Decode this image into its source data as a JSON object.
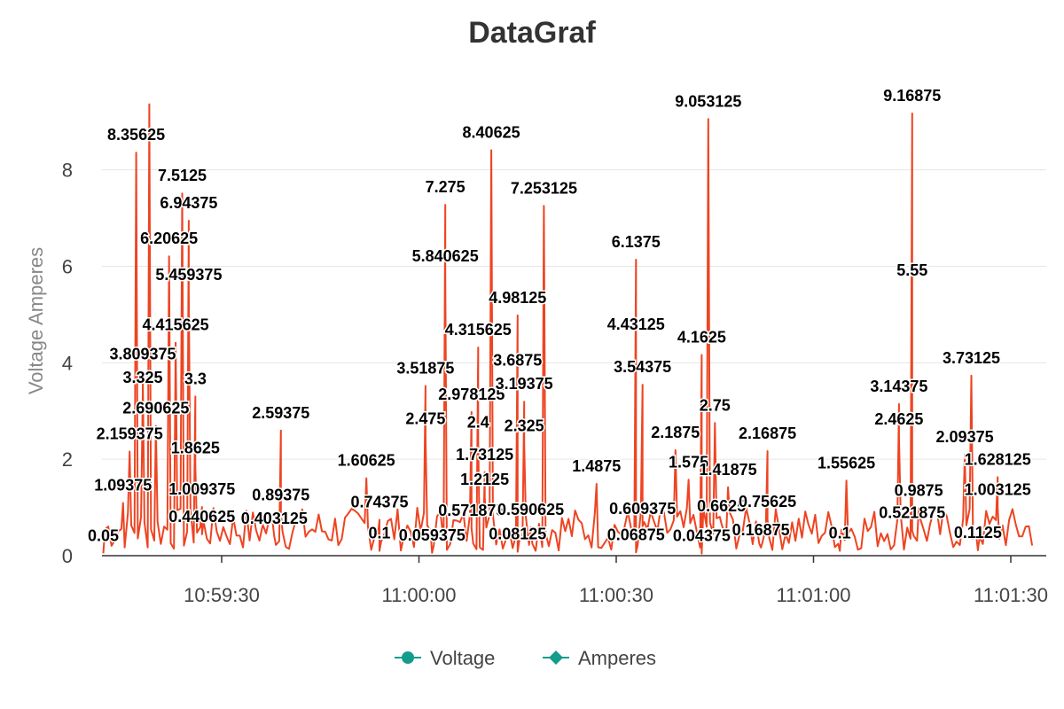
{
  "chart_data": {
    "type": "line",
    "title": "DataGraf",
    "ylabel": "Voltage Amperes",
    "xlabel": "",
    "ylim": [
      0,
      9.5
    ],
    "yticks": [
      0,
      2,
      4,
      6,
      8
    ],
    "xticks": [
      "10:59:30",
      "11:00:00",
      "11:00:30",
      "11:01:00",
      "11:01:30"
    ],
    "x_start": "10:59:12",
    "x_end": "11:01:33",
    "grid": true,
    "legend_position": "bottom",
    "legend": [
      {
        "name": "Voltage",
        "color": "#139c8c",
        "marker": "circle"
      },
      {
        "name": "Amperes",
        "color": "#139c8c",
        "marker": "diamond"
      }
    ],
    "line_color": "#ee4422",
    "labeled_points": [
      {
        "x": "10:59:12",
        "y": 0.05,
        "label": "0.05"
      },
      {
        "x": "10:59:15",
        "y": 1.09375,
        "label": "1.09375"
      },
      {
        "x": "10:59:16",
        "y": 2.159375,
        "label": "2.159375"
      },
      {
        "x": "10:59:17",
        "y": 8.35625,
        "label": "8.35625"
      },
      {
        "x": "10:59:18",
        "y": 3.325,
        "label": "3.325"
      },
      {
        "x": "10:59:18",
        "y": 3.809375,
        "label": "3.809375"
      },
      {
        "x": "10:59:19",
        "y": 9.36,
        "label": ""
      },
      {
        "x": "10:59:20",
        "y": 2.690625,
        "label": "2.690625"
      },
      {
        "x": "10:59:22",
        "y": 6.20625,
        "label": "6.20625"
      },
      {
        "x": "10:59:23",
        "y": 4.415625,
        "label": "4.415625"
      },
      {
        "x": "10:59:24",
        "y": 7.5125,
        "label": "7.5125"
      },
      {
        "x": "10:59:25",
        "y": 6.94375,
        "label": "6.94375"
      },
      {
        "x": "10:59:25",
        "y": 5.459375,
        "label": "5.459375"
      },
      {
        "x": "10:59:26",
        "y": 3.3,
        "label": "3.3"
      },
      {
        "x": "10:59:26",
        "y": 1.8625,
        "label": "1.8625"
      },
      {
        "x": "10:59:27",
        "y": 1.009375,
        "label": "1.009375"
      },
      {
        "x": "10:59:27",
        "y": 0.440625,
        "label": "0.440625"
      },
      {
        "x": "10:59:39",
        "y": 2.59375,
        "label": "2.59375"
      },
      {
        "x": "10:59:39",
        "y": 0.89375,
        "label": "0.89375"
      },
      {
        "x": "10:59:38",
        "y": 0.403125,
        "label": "0.403125"
      },
      {
        "x": "10:59:52",
        "y": 1.60625,
        "label": "1.60625"
      },
      {
        "x": "10:59:54",
        "y": 0.74375,
        "label": "0.74375"
      },
      {
        "x": "10:59:54",
        "y": 0.1,
        "label": "0.1"
      },
      {
        "x": "11:00:01",
        "y": 3.51875,
        "label": "3.51875"
      },
      {
        "x": "11:00:01",
        "y": 2.475,
        "label": "2.475"
      },
      {
        "x": "11:00:04",
        "y": 7.275,
        "label": "7.275"
      },
      {
        "x": "11:00:04",
        "y": 5.840625,
        "label": "5.840625"
      },
      {
        "x": "11:00:02",
        "y": 0.059375,
        "label": "0.059375"
      },
      {
        "x": "11:00:08",
        "y": 2.978125,
        "label": "2.978125"
      },
      {
        "x": "11:00:08",
        "y": 0.571875,
        "label": "0.571875"
      },
      {
        "x": "11:00:09",
        "y": 4.315625,
        "label": "4.315625"
      },
      {
        "x": "11:00:09",
        "y": 2.4,
        "label": "2.4"
      },
      {
        "x": "11:00:10",
        "y": 1.73125,
        "label": "1.73125"
      },
      {
        "x": "11:00:10",
        "y": 1.2125,
        "label": "1.2125"
      },
      {
        "x": "11:00:11",
        "y": 8.40625,
        "label": "8.40625"
      },
      {
        "x": "11:00:15",
        "y": 4.98125,
        "label": "4.98125"
      },
      {
        "x": "11:00:15",
        "y": 3.6875,
        "label": "3.6875"
      },
      {
        "x": "11:00:16",
        "y": 3.19375,
        "label": "3.19375"
      },
      {
        "x": "11:00:16",
        "y": 2.325,
        "label": "2.325"
      },
      {
        "x": "11:00:15",
        "y": 0.08125,
        "label": "0.08125"
      },
      {
        "x": "11:00:17",
        "y": 0.590625,
        "label": "0.590625"
      },
      {
        "x": "11:00:19",
        "y": 7.253125,
        "label": "7.253125"
      },
      {
        "x": "11:00:27",
        "y": 1.4875,
        "label": "1.4875"
      },
      {
        "x": "11:00:33",
        "y": 6.1375,
        "label": "6.1375"
      },
      {
        "x": "11:00:33",
        "y": 4.43125,
        "label": "4.43125"
      },
      {
        "x": "11:00:34",
        "y": 3.54375,
        "label": "3.54375"
      },
      {
        "x": "11:00:34",
        "y": 0.609375,
        "label": "0.609375"
      },
      {
        "x": "11:00:33",
        "y": 0.06875,
        "label": "0.06875"
      },
      {
        "x": "11:00:39",
        "y": 2.1875,
        "label": "2.1875"
      },
      {
        "x": "11:00:41",
        "y": 1.575,
        "label": "1.575"
      },
      {
        "x": "11:00:43",
        "y": 4.1625,
        "label": "4.1625"
      },
      {
        "x": "11:00:43",
        "y": 0.04375,
        "label": "0.04375"
      },
      {
        "x": "11:00:44",
        "y": 9.053125,
        "label": "9.053125"
      },
      {
        "x": "11:00:45",
        "y": 2.75,
        "label": "2.75"
      },
      {
        "x": "11:00:47",
        "y": 1.41875,
        "label": "1.41875"
      },
      {
        "x": "11:00:46",
        "y": 0.6625,
        "label": "0.6625"
      },
      {
        "x": "11:00:53",
        "y": 2.16875,
        "label": "2.16875"
      },
      {
        "x": "11:00:53",
        "y": 0.75625,
        "label": "0.75625"
      },
      {
        "x": "11:00:52",
        "y": 0.16875,
        "label": "0.16875"
      },
      {
        "x": "11:01:05",
        "y": 1.55625,
        "label": "1.55625"
      },
      {
        "x": "11:01:04",
        "y": 0.1,
        "label": "0.1"
      },
      {
        "x": "11:01:13",
        "y": 3.14375,
        "label": "3.14375"
      },
      {
        "x": "11:01:13",
        "y": 2.4625,
        "label": "2.4625"
      },
      {
        "x": "11:01:15",
        "y": 9.16875,
        "label": "9.16875"
      },
      {
        "x": "11:01:15",
        "y": 5.55,
        "label": "5.55"
      },
      {
        "x": "11:01:16",
        "y": 0.9875,
        "label": "0.9875"
      },
      {
        "x": "11:01:15",
        "y": 0.521875,
        "label": "0.521875"
      },
      {
        "x": "11:01:24",
        "y": 3.73125,
        "label": "3.73125"
      },
      {
        "x": "11:01:23",
        "y": 2.09375,
        "label": "2.09375"
      },
      {
        "x": "11:01:28",
        "y": 1.628125,
        "label": "1.628125"
      },
      {
        "x": "11:01:28",
        "y": 1.003125,
        "label": "1.003125"
      },
      {
        "x": "11:01:25",
        "y": 0.1125,
        "label": "0.1125"
      }
    ]
  }
}
